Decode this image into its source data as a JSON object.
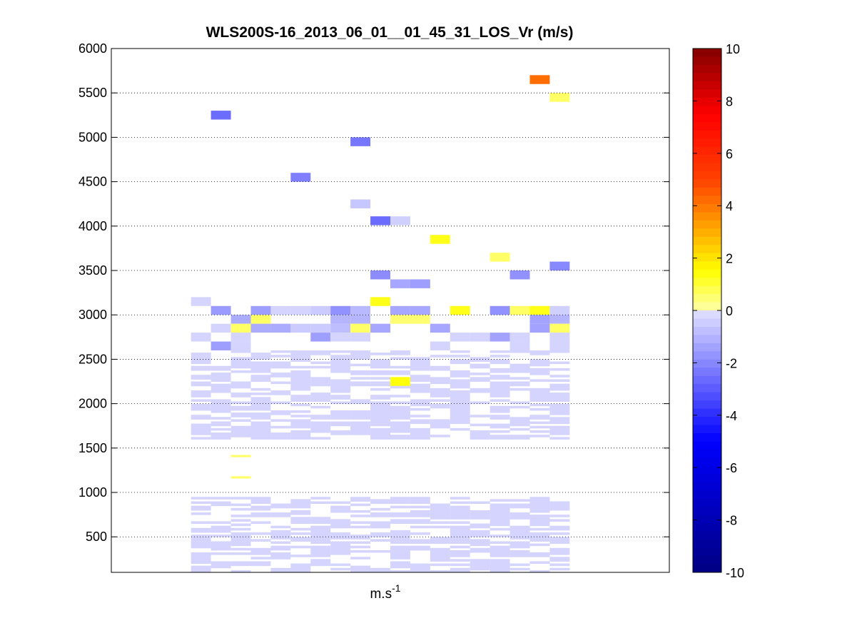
{
  "chart_data": {
    "type": "heatmap",
    "title": "WLS200S-16_2013_06_01__01_45_31_LOS_Vr (m/s)",
    "xlabel_base": "m.s",
    "xlabel_exp": "-1",
    "ylabel": "",
    "ylim": [
      100,
      6000
    ],
    "y_ticks": [
      500,
      1000,
      1500,
      2000,
      2500,
      3000,
      3500,
      4000,
      4500,
      5000,
      5500,
      6000
    ],
    "grid": "y-dotted",
    "colorbar": {
      "min": -10,
      "max": 10,
      "ticks": [
        10,
        8,
        6,
        4,
        2,
        0,
        -2,
        -4,
        -6,
        -8,
        -10
      ],
      "placement": "right",
      "colormap": "jet-like with white center"
    },
    "x_domain": [
      0,
      28
    ],
    "cells": [
      {
        "x": 5,
        "y": 5250,
        "v": -2.6
      },
      {
        "x": 12,
        "y": 4950,
        "v": -2.4
      },
      {
        "x": 9,
        "y": 4550,
        "v": -2.2
      },
      {
        "x": 12,
        "y": 4250,
        "v": -0.6
      },
      {
        "x": 13,
        "y": 4060,
        "v": -2.6
      },
      {
        "x": 14,
        "y": 4060,
        "v": -0.4
      },
      {
        "x": 16,
        "y": 3850,
        "v": 1.3
      },
      {
        "x": 19,
        "y": 3650,
        "v": 0.6
      },
      {
        "x": 20,
        "y": 3450,
        "v": -1.8
      },
      {
        "x": 22,
        "y": 3550,
        "v": -2.0
      },
      {
        "x": 13,
        "y": 3450,
        "v": -1.9
      },
      {
        "x": 14,
        "y": 3350,
        "v": -1.3
      },
      {
        "x": 15,
        "y": 3350,
        "v": -1.5
      },
      {
        "x": 21,
        "y": 5650,
        "v": 4.2
      },
      {
        "x": 22,
        "y": 5450,
        "v": 0.6
      },
      {
        "x": 13,
        "y": 3150,
        "v": 1.3
      },
      {
        "x": 5,
        "y": 3050,
        "v": -1.6
      },
      {
        "x": 7,
        "y": 3050,
        "v": -1.5
      },
      {
        "x": 8,
        "y": 3050,
        "v": -0.3
      },
      {
        "x": 9,
        "y": 3050,
        "v": -0.3
      },
      {
        "x": 10,
        "y": 3050,
        "v": -0.5
      },
      {
        "x": 11,
        "y": 3050,
        "v": -1.8
      },
      {
        "x": 12,
        "y": 3050,
        "v": -0.9
      },
      {
        "x": 14,
        "y": 3050,
        "v": -1.3
      },
      {
        "x": 15,
        "y": 3050,
        "v": -1.3
      },
      {
        "x": 17,
        "y": 3050,
        "v": 1.3
      },
      {
        "x": 19,
        "y": 3050,
        "v": -1.8
      },
      {
        "x": 20,
        "y": 3050,
        "v": 0.6
      },
      {
        "x": 21,
        "y": 3050,
        "v": 1.3
      },
      {
        "x": 22,
        "y": 3050,
        "v": -0.4
      },
      {
        "x": 4,
        "y": 3150,
        "v": -0.3
      },
      {
        "x": 6,
        "y": 2950,
        "v": -1.2
      },
      {
        "x": 7,
        "y": 2950,
        "v": 0.6
      },
      {
        "x": 11,
        "y": 2950,
        "v": -1.0
      },
      {
        "x": 12,
        "y": 2950,
        "v": -1.0
      },
      {
        "x": 14,
        "y": 2950,
        "v": 0.5
      },
      {
        "x": 15,
        "y": 2950,
        "v": 0.5
      },
      {
        "x": 21,
        "y": 2950,
        "v": -1.4
      },
      {
        "x": 22,
        "y": 2950,
        "v": -1.0
      },
      {
        "x": 5,
        "y": 2850,
        "v": -0.3
      },
      {
        "x": 6,
        "y": 2850,
        "v": 0.6
      },
      {
        "x": 7,
        "y": 2850,
        "v": -1.2
      },
      {
        "x": 8,
        "y": 2850,
        "v": -1.2
      },
      {
        "x": 9,
        "y": 2850,
        "v": -0.5
      },
      {
        "x": 10,
        "y": 2850,
        "v": -0.5
      },
      {
        "x": 11,
        "y": 2850,
        "v": -0.8
      },
      {
        "x": 12,
        "y": 2850,
        "v": 0.6
      },
      {
        "x": 13,
        "y": 2850,
        "v": -1.3
      },
      {
        "x": 16,
        "y": 2850,
        "v": -1.3
      },
      {
        "x": 21,
        "y": 2850,
        "v": -1.4
      },
      {
        "x": 22,
        "y": 2850,
        "v": 0.6
      },
      {
        "x": 4,
        "y": 2750,
        "v": -0.3
      },
      {
        "x": 6,
        "y": 2750,
        "v": -0.3
      },
      {
        "x": 10,
        "y": 2750,
        "v": -1.5
      },
      {
        "x": 11,
        "y": 2750,
        "v": -0.3
      },
      {
        "x": 12,
        "y": 2750,
        "v": -0.3
      },
      {
        "x": 17,
        "y": 2750,
        "v": -0.3
      },
      {
        "x": 18,
        "y": 2750,
        "v": -0.3
      },
      {
        "x": 19,
        "y": 2750,
        "v": -1.4
      },
      {
        "x": 20,
        "y": 2750,
        "v": -0.3
      },
      {
        "x": 22,
        "y": 2750,
        "v": -0.3
      },
      {
        "x": 5,
        "y": 2650,
        "v": -1.5
      },
      {
        "x": 6,
        "y": 2650,
        "v": -0.3
      },
      {
        "x": 16,
        "y": 2650,
        "v": -0.3
      },
      {
        "x": 20,
        "y": 2650,
        "v": -0.3
      },
      {
        "x": 22,
        "y": 2650,
        "v": -0.3
      },
      {
        "x": 14,
        "y": 2250,
        "v": 1.4
      }
    ],
    "bands": [
      {
        "x0": 4,
        "x1": 23,
        "y0": 1600,
        "y1": 2600,
        "v": -0.3,
        "fill": 0.55
      },
      {
        "x0": 4,
        "x1": 23,
        "y0": 100,
        "y1": 950,
        "v": -0.3,
        "fill": 0.55
      }
    ],
    "extra_thin": [
      {
        "x": 6,
        "y": 1410,
        "v": 0.6
      },
      {
        "x": 6,
        "y": 1170,
        "v": 0.6
      }
    ]
  }
}
